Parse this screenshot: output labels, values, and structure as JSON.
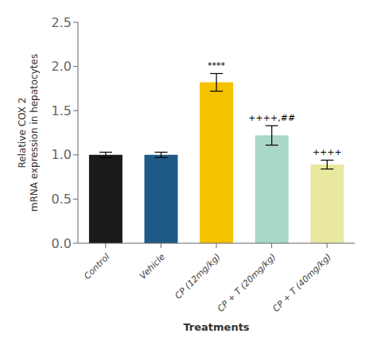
{
  "chart_data": {
    "type": "bar",
    "categories": [
      "Control",
      "Vehicle",
      "CP (12mg/kg)",
      "CP + T (20mg/kg)",
      "CP + T (40mg/kg)"
    ],
    "values": [
      1.0,
      1.0,
      1.82,
      1.22,
      0.89
    ],
    "errors": [
      0.03,
      0.03,
      0.1,
      0.11,
      0.05
    ],
    "colors": [
      "#1a1a1a",
      "#1f5a87",
      "#f5c200",
      "#aad8c8",
      "#e8e8a0"
    ],
    "annotations": [
      {
        "category": "CP (12mg/kg)",
        "text": "****"
      },
      {
        "category": "CP + T (20mg/kg)",
        "text": "++++,##"
      },
      {
        "category": "CP + T (40mg/kg)",
        "text": "++++"
      }
    ],
    "xlabel": "Treatments",
    "ylabel": "Relative COX 2\nmRNA expression in hepatocytes",
    "ylim": [
      0,
      2.5
    ],
    "yticks": [
      {
        "value": 0,
        "label": "0.0"
      },
      0.5,
      {
        "value": 1,
        "label": "1.0"
      },
      1.5,
      {
        "value": 2,
        "label": "2.0"
      },
      2.5
    ],
    "grid": false
  }
}
